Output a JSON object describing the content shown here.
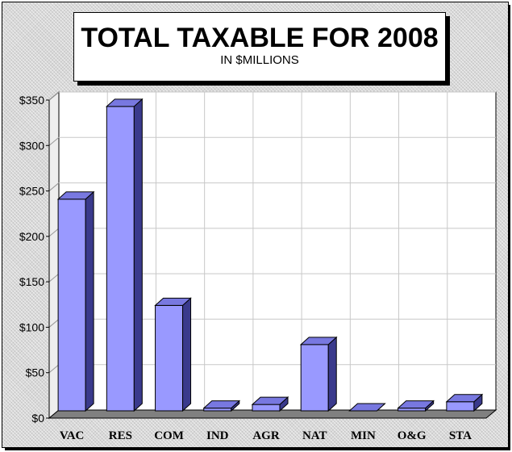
{
  "chart_data": {
    "type": "bar",
    "title": "TOTAL TAXABLE FOR 2008",
    "subtitle": "IN $MILLIONS",
    "xlabel": "",
    "ylabel": "",
    "categories": [
      "VAC",
      "RES",
      "COM",
      "IND",
      "AGR",
      "NAT",
      "MIN",
      "O&G",
      "STA"
    ],
    "values": [
      233,
      335,
      116,
      3,
      7,
      73,
      0,
      3,
      10
    ],
    "ylim": [
      0,
      350
    ],
    "yticks": [
      0,
      50,
      100,
      150,
      200,
      250,
      300,
      350
    ],
    "ytick_labels": [
      "$0",
      "$50",
      "$100",
      "$150",
      "$200",
      "$250",
      "$300",
      "$350"
    ],
    "grid": true,
    "style": "3d-column",
    "colors": {
      "bar_front": "#9999ff",
      "bar_top": "#7878e0",
      "bar_side": "#3a3a8c",
      "floor": "#808080",
      "wall": "#ffffff",
      "gridline": "#c8c8c8"
    }
  }
}
